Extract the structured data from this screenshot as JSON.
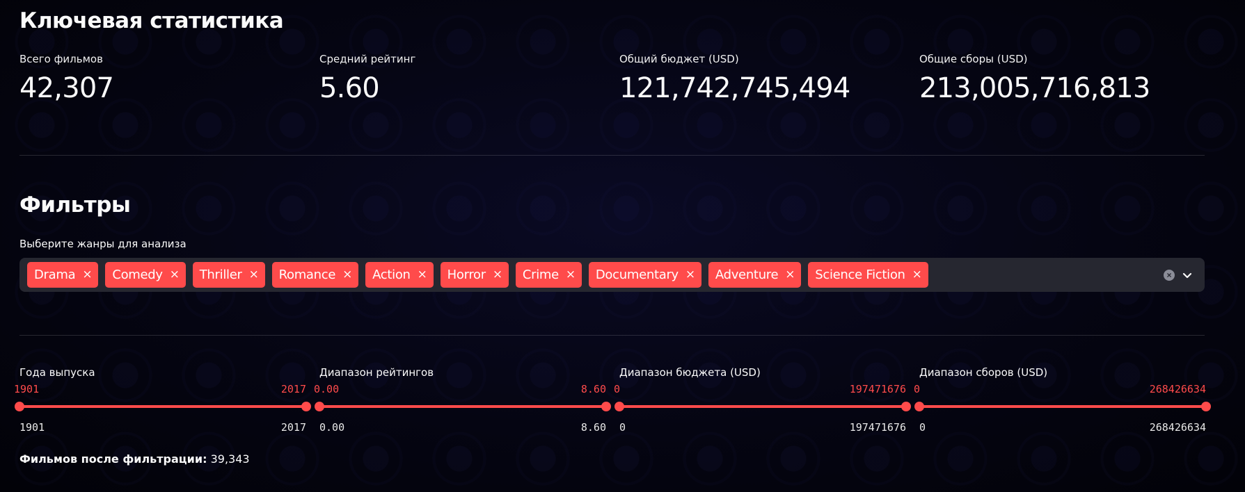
{
  "stats": {
    "title": "Ключевая статистика",
    "metrics": [
      {
        "label": "Всего фильмов",
        "value": "42,307"
      },
      {
        "label": "Средний рейтинг",
        "value": "5.60"
      },
      {
        "label": "Общий бюджет (USD)",
        "value": "121,742,745,494"
      },
      {
        "label": "Общие сборы (USD)",
        "value": "213,005,716,813"
      }
    ]
  },
  "filters": {
    "title": "Фильтры",
    "genre_label": "Выберите жанры для анализа",
    "genres": [
      "Drama",
      "Comedy",
      "Thriller",
      "Romance",
      "Action",
      "Horror",
      "Crime",
      "Documentary",
      "Adventure",
      "Science Fiction"
    ],
    "chip_remove_glyph": "×",
    "accent_color": "#ff4b4b",
    "icons": {
      "clear": "clear-icon",
      "expand": "chevron-down-icon"
    },
    "sliders": [
      {
        "label": "Года выпуска",
        "low": "1901",
        "high": "2017",
        "min": "1901",
        "max": "2017"
      },
      {
        "label": "Диапазон рейтингов",
        "low": "0.00",
        "high": "8.60",
        "min": "0.00",
        "max": "8.60"
      },
      {
        "label": "Диапазон бюджета (USD)",
        "low": "0",
        "high": "197471676",
        "min": "0",
        "max": "197471676"
      },
      {
        "label": "Диапазон сборов (USD)",
        "low": "0",
        "high": "268426634",
        "min": "0",
        "max": "268426634"
      }
    ]
  },
  "result": {
    "label": "Фильмов после фильтрации:",
    "value": "39,343"
  }
}
